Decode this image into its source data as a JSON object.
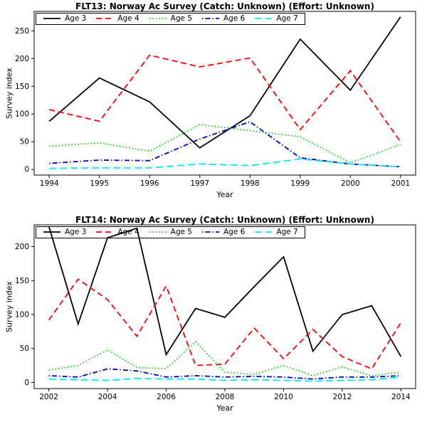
{
  "accent_colors": {
    "age3": "#000000",
    "age4": "#FF0000",
    "age5": "#00CD00",
    "age6": "#0000CD",
    "age7": "#00EEEE"
  },
  "chart_data": [
    {
      "type": "line",
      "title": "FLT13: Norway Ac Survey (Catch: Unknown) (Effort: Unknown)",
      "xlabel": "Year",
      "ylabel": "Survey index",
      "legend_position": "top-left-horizontal",
      "grid": false,
      "x": [
        1994,
        1995,
        1996,
        1997,
        1998,
        1999,
        2000,
        2001
      ],
      "xticks": [
        1994,
        1995,
        1996,
        1997,
        1998,
        1999,
        2000,
        2001
      ],
      "yticks": [
        0,
        50,
        100,
        150,
        200,
        250
      ],
      "xlim": [
        1993.7,
        2001.3
      ],
      "ylim": [
        -10,
        285
      ],
      "series": [
        {
          "name": "Age 3",
          "color": "#000000",
          "dash": "solid",
          "values": [
            87,
            165,
            122,
            39,
            97,
            235,
            143,
            275
          ]
        },
        {
          "name": "Age 4",
          "color": "#FF0000",
          "dash": "dashed",
          "values": [
            108,
            87,
            206,
            185,
            201,
            72,
            178,
            50
          ]
        },
        {
          "name": "Age 5",
          "color": "#00CD00",
          "dash": "dotted",
          "values": [
            42,
            48,
            33,
            81,
            70,
            59,
            12,
            45
          ]
        },
        {
          "name": "Age 6",
          "color": "#0000CD",
          "dash": "dashdot",
          "values": [
            11,
            17,
            16,
            55,
            86,
            21,
            10,
            5
          ]
        },
        {
          "name": "Age 7",
          "color": "#00EEEE",
          "dash": "longdash",
          "values": [
            2,
            3,
            3,
            10,
            7,
            19,
            10,
            5
          ]
        }
      ]
    },
    {
      "type": "line",
      "title": "FLT14: Norway Ac Survey (Catch: Unknown) (Effort: Unknown)",
      "xlabel": "Year",
      "ylabel": "Survey index",
      "legend_position": "top-left-horizontal",
      "grid": false,
      "x": [
        2002,
        2003,
        2004,
        2005,
        2006,
        2007,
        2008,
        2009,
        2010,
        2011,
        2012,
        2013,
        2014
      ],
      "xticks": [
        2002,
        2004,
        2006,
        2008,
        2010,
        2012,
        2014
      ],
      "yticks": [
        0,
        50,
        100,
        150,
        200
      ],
      "xlim": [
        2001.5,
        2014.5
      ],
      "ylim": [
        -9,
        232
      ],
      "series": [
        {
          "name": "Age 3",
          "color": "#000000",
          "dash": "solid",
          "values": [
            230,
            86,
            213,
            227,
            41,
            109,
            96,
            141,
            185,
            46,
            100,
            113,
            38
          ]
        },
        {
          "name": "Age 4",
          "color": "#FF0000",
          "dash": "dashed",
          "values": [
            92,
            152,
            122,
            68,
            142,
            25,
            27,
            80,
            35,
            78,
            38,
            20,
            88
          ]
        },
        {
          "name": "Age 5",
          "color": "#00CD00",
          "dash": "dotted",
          "values": [
            18,
            25,
            48,
            22,
            20,
            60,
            15,
            12,
            25,
            10,
            23,
            10,
            15
          ]
        },
        {
          "name": "Age 6",
          "color": "#0000CD",
          "dash": "dashdot",
          "values": [
            10,
            8,
            20,
            17,
            8,
            10,
            8,
            9,
            8,
            5,
            8,
            8,
            10
          ]
        },
        {
          "name": "Age 7",
          "color": "#00EEEE",
          "dash": "longdash",
          "values": [
            5,
            4,
            3,
            6,
            5,
            5,
            3,
            4,
            3,
            2,
            3,
            4,
            8
          ]
        }
      ]
    }
  ]
}
